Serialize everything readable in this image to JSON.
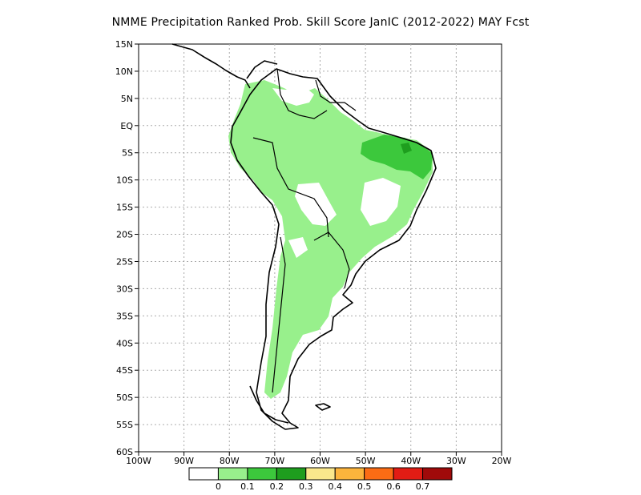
{
  "title": "NMME  Precipitation Ranked Prob. Skill Score JanIC (2012-2022) MAY Fcst",
  "map": {
    "lat_labels": [
      "15N",
      "10N",
      "5N",
      "EQ",
      "5S",
      "10S",
      "15S",
      "20S",
      "25S",
      "30S",
      "35S",
      "40S",
      "45S",
      "50S",
      "55S",
      "60S"
    ],
    "lon_labels": [
      "100W",
      "90W",
      "80W",
      "70W",
      "60W",
      "50W",
      "40W",
      "30W",
      "20W"
    ],
    "grid": "dotted",
    "colors": {
      "land_outline": "#000000",
      "grid": "#aaaaaa",
      "low_skill": "#98f08c",
      "mid_skill": "#3cc83c",
      "high_skill": "#1e9e1e"
    }
  },
  "colorbar": {
    "labels": [
      "0",
      "0.1",
      "0.2",
      "0.3",
      "0.4",
      "0.5",
      "0.6",
      "0.7"
    ],
    "colors": [
      "#ffffff",
      "#98f08c",
      "#3cc83c",
      "#1e9e1e",
      "#fae88c",
      "#fcb43c",
      "#fc6c14",
      "#e21c14",
      "#a00a0a"
    ]
  }
}
